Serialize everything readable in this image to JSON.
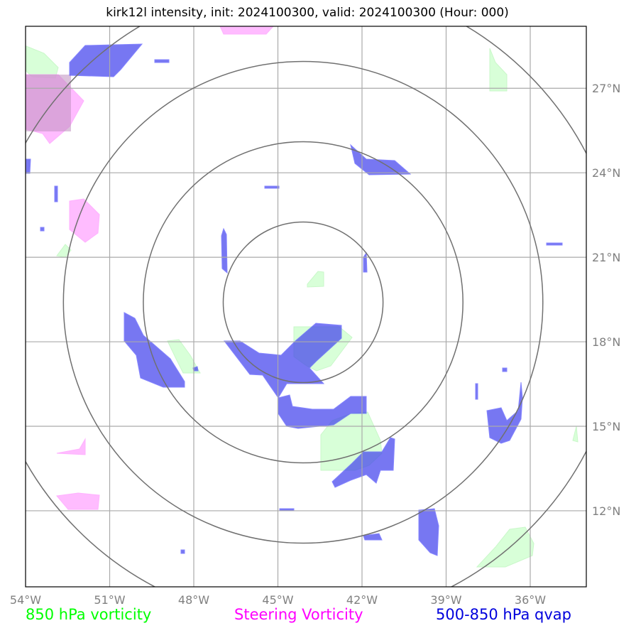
{
  "title": "kirk12l intensity, init: 2024100300, valid: 2024100300 (Hour: 000)",
  "map": {
    "lon_range": [
      -54.0,
      -34.0
    ],
    "lat_range": [
      9.3,
      29.2
    ],
    "lon_ticks": [
      {
        "value": -54,
        "label": "54°W"
      },
      {
        "value": -51,
        "label": "51°W"
      },
      {
        "value": -48,
        "label": "48°W"
      },
      {
        "value": -45,
        "label": "45°W"
      },
      {
        "value": -42,
        "label": "42°W"
      },
      {
        "value": -39,
        "label": "39°W"
      },
      {
        "value": -36,
        "label": "36°W"
      }
    ],
    "lat_ticks": [
      {
        "value": 27,
        "label": "27°N"
      },
      {
        "value": 24,
        "label": "24°N"
      },
      {
        "value": 21,
        "label": "21°N"
      },
      {
        "value": 18,
        "label": "18°N"
      },
      {
        "value": 15,
        "label": "15°N"
      },
      {
        "value": 12,
        "label": "12°N"
      }
    ],
    "grid": true,
    "storm_center": {
      "lon": -44.1,
      "lat": 19.4
    },
    "range_rings_deg": [
      2.85,
      5.7,
      8.55,
      11.4
    ],
    "colors": {
      "vorticity_850": "#ccffcc",
      "steering_vorticity": "#ff99ff",
      "qvap": "#4444ee",
      "rings": "#707070",
      "grid": "#aaaaaa"
    }
  },
  "legend": [
    {
      "label": "850 hPa vorticity",
      "color": "#00ff00"
    },
    {
      "label": "Steering Vorticity",
      "color": "#ff00ff"
    },
    {
      "label": "500-850 hPa qvap",
      "color": "#0000dd"
    }
  ]
}
